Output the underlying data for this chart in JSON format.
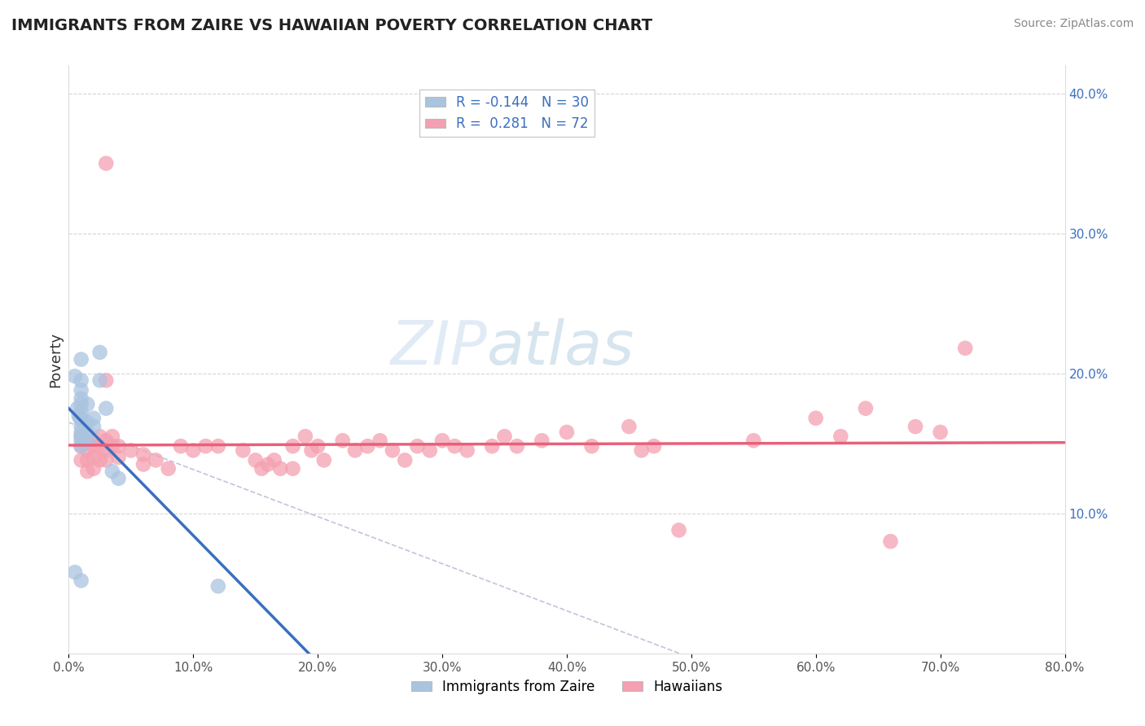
{
  "title": "IMMIGRANTS FROM ZAIRE VS HAWAIIAN POVERTY CORRELATION CHART",
  "source": "Source: ZipAtlas.com",
  "x_min": 0.0,
  "x_max": 0.8,
  "y_min": 0.0,
  "y_max": 0.42,
  "blue_R": -0.144,
  "blue_N": 30,
  "pink_R": 0.281,
  "pink_N": 72,
  "blue_color": "#aac4e0",
  "pink_color": "#f4a0b0",
  "blue_line_color": "#3a6fbf",
  "pink_line_color": "#e8607a",
  "blue_scatter": [
    [
      0.005,
      0.198
    ],
    [
      0.007,
      0.175
    ],
    [
      0.008,
      0.17
    ],
    [
      0.009,
      0.168
    ],
    [
      0.01,
      0.21
    ],
    [
      0.01,
      0.195
    ],
    [
      0.01,
      0.188
    ],
    [
      0.01,
      0.182
    ],
    [
      0.01,
      0.178
    ],
    [
      0.01,
      0.172
    ],
    [
      0.01,
      0.168
    ],
    [
      0.01,
      0.162
    ],
    [
      0.01,
      0.158
    ],
    [
      0.01,
      0.155
    ],
    [
      0.01,
      0.152
    ],
    [
      0.01,
      0.148
    ],
    [
      0.015,
      0.178
    ],
    [
      0.015,
      0.165
    ],
    [
      0.015,
      0.158
    ],
    [
      0.015,
      0.152
    ],
    [
      0.02,
      0.168
    ],
    [
      0.02,
      0.162
    ],
    [
      0.025,
      0.215
    ],
    [
      0.025,
      0.195
    ],
    [
      0.03,
      0.175
    ],
    [
      0.035,
      0.13
    ],
    [
      0.04,
      0.125
    ],
    [
      0.005,
      0.058
    ],
    [
      0.01,
      0.052
    ],
    [
      0.12,
      0.048
    ]
  ],
  "pink_scatter": [
    [
      0.01,
      0.155
    ],
    [
      0.01,
      0.148
    ],
    [
      0.01,
      0.138
    ],
    [
      0.015,
      0.152
    ],
    [
      0.015,
      0.145
    ],
    [
      0.015,
      0.138
    ],
    [
      0.015,
      0.13
    ],
    [
      0.02,
      0.148
    ],
    [
      0.02,
      0.14
    ],
    [
      0.02,
      0.132
    ],
    [
      0.025,
      0.155
    ],
    [
      0.025,
      0.148
    ],
    [
      0.025,
      0.138
    ],
    [
      0.03,
      0.35
    ],
    [
      0.03,
      0.195
    ],
    [
      0.03,
      0.152
    ],
    [
      0.03,
      0.145
    ],
    [
      0.03,
      0.138
    ],
    [
      0.035,
      0.155
    ],
    [
      0.035,
      0.148
    ],
    [
      0.04,
      0.148
    ],
    [
      0.04,
      0.14
    ],
    [
      0.05,
      0.145
    ],
    [
      0.06,
      0.142
    ],
    [
      0.06,
      0.135
    ],
    [
      0.07,
      0.138
    ],
    [
      0.08,
      0.132
    ],
    [
      0.09,
      0.148
    ],
    [
      0.1,
      0.145
    ],
    [
      0.11,
      0.148
    ],
    [
      0.12,
      0.148
    ],
    [
      0.14,
      0.145
    ],
    [
      0.15,
      0.138
    ],
    [
      0.155,
      0.132
    ],
    [
      0.16,
      0.135
    ],
    [
      0.165,
      0.138
    ],
    [
      0.17,
      0.132
    ],
    [
      0.18,
      0.148
    ],
    [
      0.18,
      0.132
    ],
    [
      0.19,
      0.155
    ],
    [
      0.195,
      0.145
    ],
    [
      0.2,
      0.148
    ],
    [
      0.205,
      0.138
    ],
    [
      0.22,
      0.152
    ],
    [
      0.23,
      0.145
    ],
    [
      0.24,
      0.148
    ],
    [
      0.25,
      0.152
    ],
    [
      0.26,
      0.145
    ],
    [
      0.27,
      0.138
    ],
    [
      0.28,
      0.148
    ],
    [
      0.29,
      0.145
    ],
    [
      0.3,
      0.152
    ],
    [
      0.31,
      0.148
    ],
    [
      0.32,
      0.145
    ],
    [
      0.34,
      0.148
    ],
    [
      0.35,
      0.155
    ],
    [
      0.36,
      0.148
    ],
    [
      0.38,
      0.152
    ],
    [
      0.4,
      0.158
    ],
    [
      0.42,
      0.148
    ],
    [
      0.45,
      0.162
    ],
    [
      0.46,
      0.145
    ],
    [
      0.47,
      0.148
    ],
    [
      0.49,
      0.088
    ],
    [
      0.55,
      0.152
    ],
    [
      0.6,
      0.168
    ],
    [
      0.62,
      0.155
    ],
    [
      0.64,
      0.175
    ],
    [
      0.66,
      0.08
    ],
    [
      0.68,
      0.162
    ],
    [
      0.7,
      0.158
    ],
    [
      0.72,
      0.218
    ]
  ],
  "grid_color": "#cccccc",
  "bg_color": "#ffffff",
  "watermark_color": "#c5d8ee",
  "watermark_alpha": 0.5
}
